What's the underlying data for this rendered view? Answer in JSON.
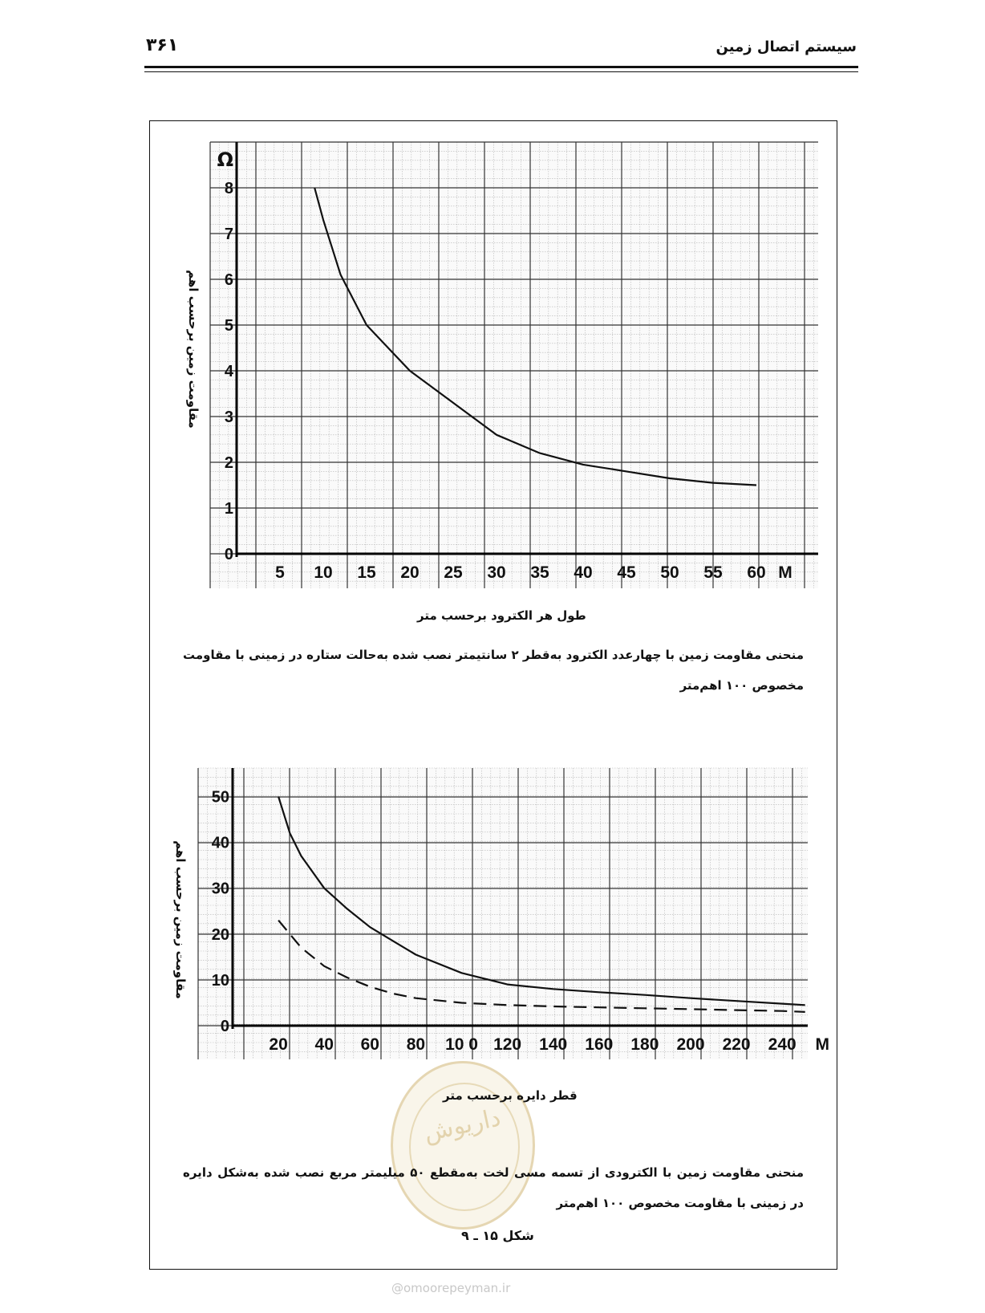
{
  "header": {
    "page_number": "۳۶۱",
    "running_title": "سیستم اتصال زمین"
  },
  "figure_top": {
    "y_label": "مقاومت زمین برحسب اهم",
    "x_label": "طول هر الکترود برحسب متر",
    "caption": "منحنی مقاومت زمین با چهارعدد الکترود به‌قطر ۲ سانتیمتر نصب شده به‌حالت ستاره در زمینی با مقاومت مخصوص ۱۰۰ اهم‌متر"
  },
  "figure_bottom": {
    "y_label": "مقاومت زمین برحسب اهم",
    "x_label": "قطر دایره برحسب متر",
    "caption": "منحنی مقاومت زمین با الکترودی از تسمه مسی لخت به‌مقطع ۵۰ میلیمتر مربع نصب شده به‌شکل دایره در زمینی با مقاومت مخصوص ۱۰۰ اهم‌متر",
    "figure_number": "شکل ۱۵ ـ ۹"
  },
  "watermark": "@omoorepeyman.ir",
  "stamp_text": "داریوش",
  "chart_data": [
    {
      "type": "line",
      "y_unit": "Ω",
      "x_unit": "M",
      "x_ticks": [
        "5",
        "10",
        "15",
        "20",
        "25",
        "30",
        "35",
        "40",
        "45",
        "50",
        "55",
        "60"
      ],
      "y_ticks": [
        "0",
        "1",
        "2",
        "3",
        "4",
        "5",
        "6",
        "7",
        "8"
      ],
      "xlim": [
        0,
        63
      ],
      "ylim": [
        0,
        8.8
      ],
      "grid": true,
      "series": [
        {
          "style": "solid",
          "x": [
            9,
            10,
            12,
            15,
            18,
            20,
            25,
            30,
            35,
            40,
            45,
            50,
            55,
            60
          ],
          "y": [
            8.0,
            7.3,
            6.1,
            5.0,
            4.4,
            4.0,
            3.3,
            2.6,
            2.2,
            1.95,
            1.8,
            1.65,
            1.55,
            1.5
          ]
        }
      ]
    },
    {
      "type": "line",
      "x_unit": "M",
      "x_ticks": [
        "20",
        "40",
        "60",
        "80",
        "10 0",
        "120",
        "140",
        "160",
        "180",
        "200",
        "220",
        "240"
      ],
      "y_ticks": [
        "0",
        "10",
        "20",
        "30",
        "40",
        "50"
      ],
      "xlim": [
        0,
        253
      ],
      "ylim": [
        0,
        56
      ],
      "grid": true,
      "series": [
        {
          "style": "solid",
          "x": [
            20,
            25,
            30,
            40,
            50,
            60,
            70,
            80,
            100,
            120,
            140,
            160,
            180,
            200,
            220,
            240,
            250
          ],
          "y": [
            50,
            42,
            37,
            30,
            25.5,
            21.5,
            18.5,
            15.5,
            11.5,
            9,
            8,
            7.3,
            6.7,
            6,
            5.4,
            4.8,
            4.5
          ]
        },
        {
          "style": "dashed",
          "x": [
            20,
            30,
            40,
            50,
            60,
            70,
            80,
            100,
            120,
            140,
            160,
            180,
            200,
            220,
            240,
            250
          ],
          "y": [
            23,
            17,
            13,
            10.5,
            8.5,
            7,
            6,
            5,
            4.5,
            4.2,
            4,
            3.8,
            3.6,
            3.4,
            3.2,
            3
          ]
        }
      ]
    }
  ]
}
